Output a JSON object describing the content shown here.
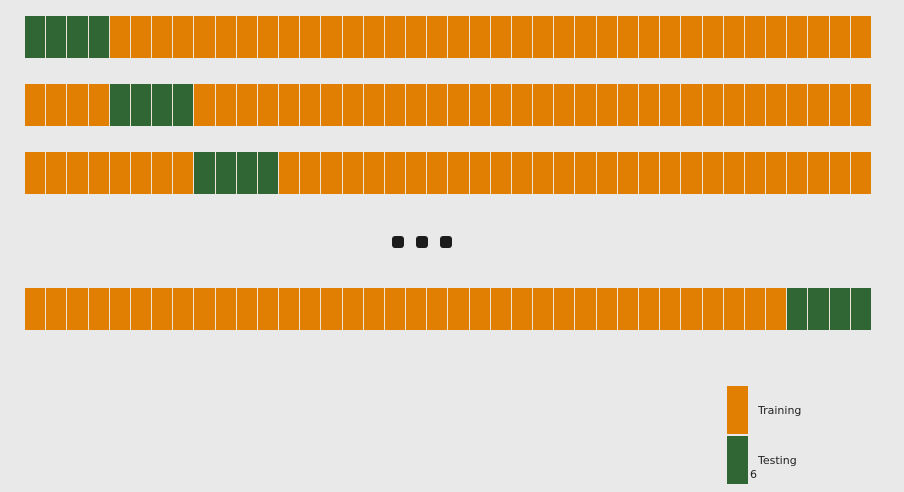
{
  "colors": {
    "training": "#e07f02",
    "testing": "#2f6634",
    "background": "#e9e9e9"
  },
  "folds": [
    {
      "segments": 40,
      "test_start": 0,
      "test_count": 4
    },
    {
      "segments": 40,
      "test_start": 4,
      "test_count": 4
    },
    {
      "segments": 40,
      "test_start": 8,
      "test_count": 4
    },
    {
      "segments": 40,
      "test_start": 36,
      "test_count": 4
    }
  ],
  "legend": {
    "training_label": "Training",
    "testing_label": "Testing"
  },
  "stray_text": "6"
}
